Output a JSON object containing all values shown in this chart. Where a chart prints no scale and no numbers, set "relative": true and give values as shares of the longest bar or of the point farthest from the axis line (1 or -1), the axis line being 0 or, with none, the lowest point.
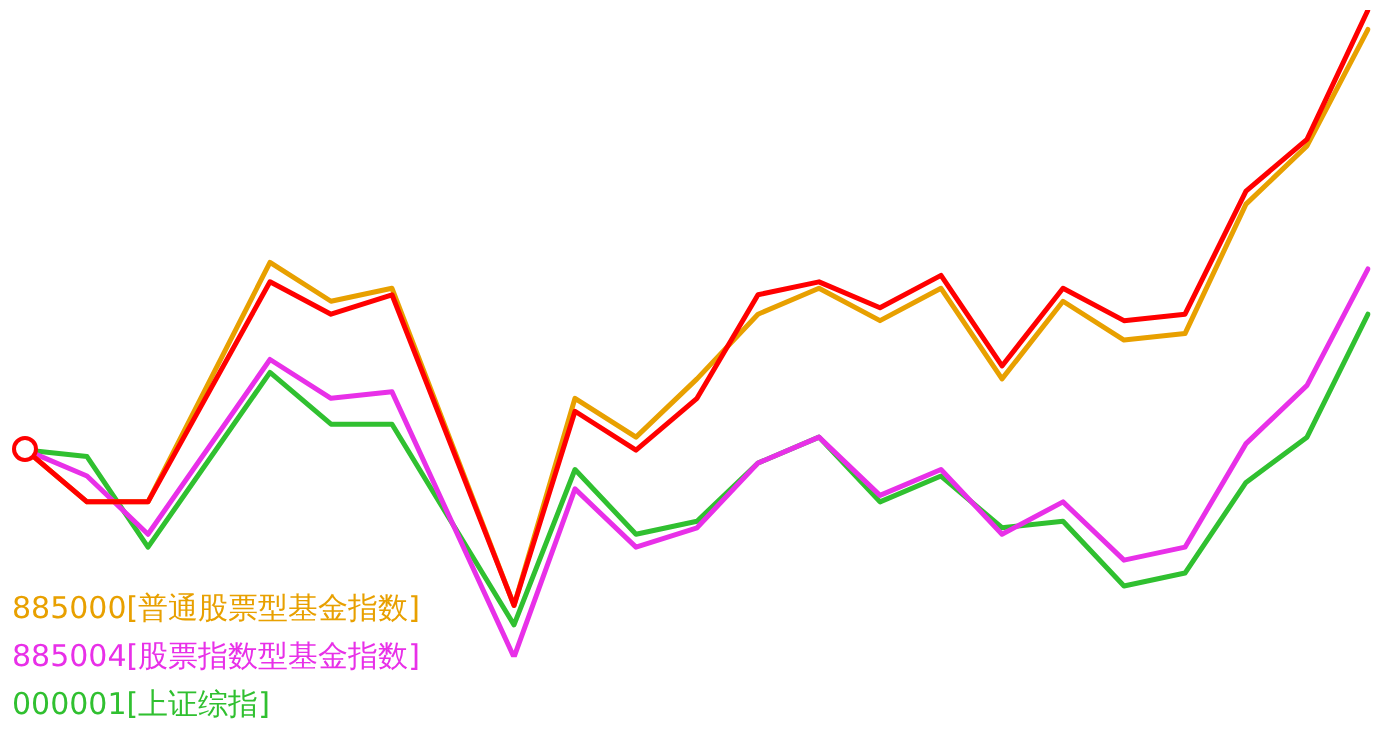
{
  "chart_data": {
    "type": "line",
    "relative": true,
    "categories": [
      null,
      null,
      null,
      null,
      null,
      null,
      null,
      null,
      null,
      null,
      null,
      null,
      null,
      null,
      null,
      null,
      null,
      null,
      null,
      null,
      null,
      null,
      null
    ],
    "series": [
      {
        "color": "#ff0000",
        "values": [
          0.32,
          0.24,
          0.24,
          null,
          0.58,
          0.53,
          0.56,
          null,
          0.08,
          0.38,
          0.32,
          0.4,
          0.56,
          0.58,
          0.54,
          0.59,
          0.45,
          0.57,
          0.52,
          0.53,
          0.72,
          0.8,
          1
        ]
      },
      {
        "name": "885000[普通股票型基金指数]",
        "color": "#e8a000",
        "values": [
          0.32,
          0.24,
          0.24,
          null,
          0.61,
          0.55,
          0.57,
          null,
          0.08,
          0.4,
          0.34,
          0.43,
          0.53,
          0.57,
          0.52,
          0.57,
          0.43,
          0.55,
          0.49,
          0.5,
          0.7,
          0.79,
          0.97
        ]
      },
      {
        "name": "885004[股票指数型基金指数]",
        "color": "#e830e8",
        "values": [
          0.32,
          0.28,
          0.19,
          null,
          0.46,
          0.4,
          0.41,
          null,
          0,
          0.26,
          0.17,
          0.2,
          0.3,
          0.34,
          0.25,
          0.29,
          0.19,
          0.24,
          0.15,
          0.17,
          0.33,
          0.42,
          0.6
        ]
      },
      {
        "name": "000001[上证综指]",
        "color": "#30c030",
        "values": [
          0.32,
          0.31,
          0.17,
          null,
          0.44,
          0.36,
          0.36,
          null,
          0.05,
          0.29,
          0.19,
          0.21,
          0.3,
          0.34,
          0.24,
          0.28,
          0.2,
          0.21,
          0.11,
          0.13,
          0.27,
          0.34,
          0.53
        ]
      }
    ]
  }
}
